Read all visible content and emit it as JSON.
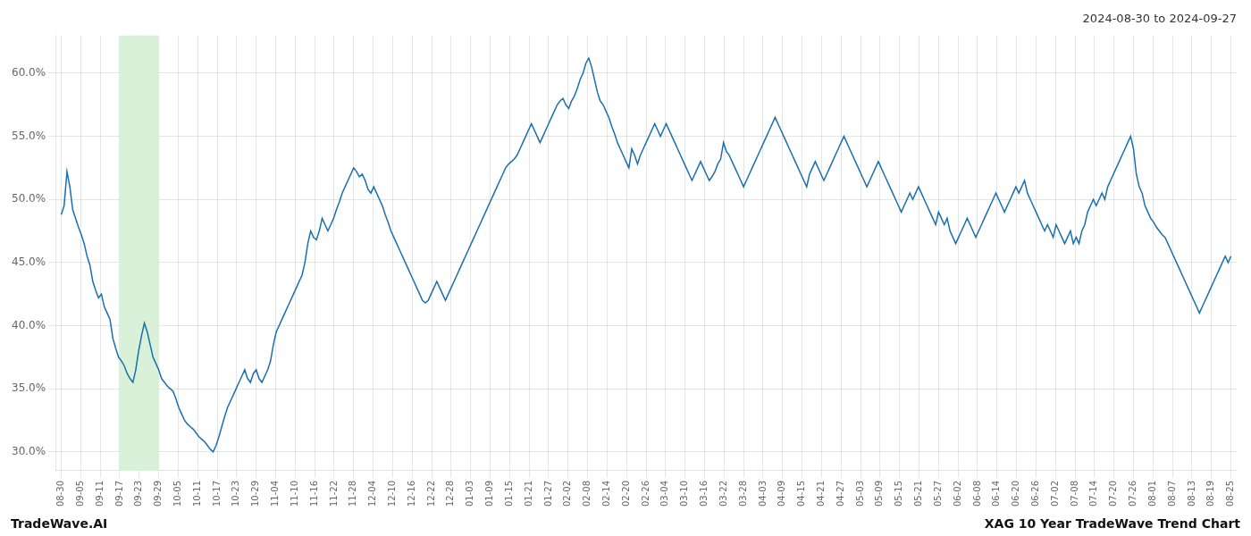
{
  "chart_data": {
    "type": "line",
    "title": "2024-08-30 to 2024-09-27",
    "annotations": [
      "TradeWave.AI",
      "XAG 10 Year TradeWave Trend Chart"
    ],
    "color": "#1a6faf",
    "grid": true,
    "highlight": {
      "start": 20.4,
      "end": 34.0,
      "color": "#d9f0d9"
    },
    "xlim": [
      -2,
      410
    ],
    "ylim": [
      28.5,
      63.0
    ],
    "yticks": [
      {
        "value": 30.0,
        "label": "30.0%"
      },
      {
        "value": 35.0,
        "label": "35.0%"
      },
      {
        "value": 40.0,
        "label": "40.0%"
      },
      {
        "value": 45.0,
        "label": "45.0%"
      },
      {
        "value": 50.0,
        "label": "50.0%"
      },
      {
        "value": 55.0,
        "label": "55.0%"
      },
      {
        "value": 60.0,
        "label": "60.0%"
      }
    ],
    "xticks": [
      {
        "value": 0,
        "label": "08-30"
      },
      {
        "value": 6.8,
        "label": "09-05"
      },
      {
        "value": 13.6,
        "label": "09-11"
      },
      {
        "value": 20.4,
        "label": "09-17"
      },
      {
        "value": 27.2,
        "label": "09-23"
      },
      {
        "value": 34.0,
        "label": "09-29"
      },
      {
        "value": 40.8,
        "label": "10-05"
      },
      {
        "value": 47.6,
        "label": "10-11"
      },
      {
        "value": 54.4,
        "label": "10-17"
      },
      {
        "value": 61.2,
        "label": "10-23"
      },
      {
        "value": 68.0,
        "label": "10-29"
      },
      {
        "value": 74.8,
        "label": "11-04"
      },
      {
        "value": 81.6,
        "label": "11-10"
      },
      {
        "value": 88.4,
        "label": "11-16"
      },
      {
        "value": 95.2,
        "label": "11-22"
      },
      {
        "value": 102.0,
        "label": "11-28"
      },
      {
        "value": 108.8,
        "label": "12-04"
      },
      {
        "value": 115.6,
        "label": "12-10"
      },
      {
        "value": 122.4,
        "label": "12-16"
      },
      {
        "value": 129.2,
        "label": "12-22"
      },
      {
        "value": 136.0,
        "label": "12-28"
      },
      {
        "value": 142.8,
        "label": "01-03"
      },
      {
        "value": 149.6,
        "label": "01-09"
      },
      {
        "value": 156.4,
        "label": "01-15"
      },
      {
        "value": 163.2,
        "label": "01-21"
      },
      {
        "value": 170.0,
        "label": "01-27"
      },
      {
        "value": 176.8,
        "label": "02-02"
      },
      {
        "value": 183.6,
        "label": "02-08"
      },
      {
        "value": 190.4,
        "label": "02-14"
      },
      {
        "value": 197.2,
        "label": "02-20"
      },
      {
        "value": 204.0,
        "label": "02-26"
      },
      {
        "value": 210.8,
        "label": "03-04"
      },
      {
        "value": 217.6,
        "label": "03-10"
      },
      {
        "value": 224.4,
        "label": "03-16"
      },
      {
        "value": 231.2,
        "label": "03-22"
      },
      {
        "value": 238.0,
        "label": "03-28"
      },
      {
        "value": 244.8,
        "label": "04-03"
      },
      {
        "value": 251.6,
        "label": "04-09"
      },
      {
        "value": 258.4,
        "label": "04-15"
      },
      {
        "value": 265.2,
        "label": "04-21"
      },
      {
        "value": 272.0,
        "label": "04-27"
      },
      {
        "value": 278.8,
        "label": "05-03"
      },
      {
        "value": 285.6,
        "label": "05-09"
      },
      {
        "value": 292.4,
        "label": "05-15"
      },
      {
        "value": 299.2,
        "label": "05-21"
      },
      {
        "value": 306.0,
        "label": "05-27"
      },
      {
        "value": 312.8,
        "label": "06-02"
      },
      {
        "value": 319.6,
        "label": "06-08"
      },
      {
        "value": 326.4,
        "label": "06-14"
      },
      {
        "value": 333.2,
        "label": "06-20"
      },
      {
        "value": 340.0,
        "label": "06-26"
      },
      {
        "value": 346.8,
        "label": "07-02"
      },
      {
        "value": 353.6,
        "label": "07-08"
      },
      {
        "value": 360.4,
        "label": "07-14"
      },
      {
        "value": 367.2,
        "label": "07-20"
      },
      {
        "value": 374.0,
        "label": "07-26"
      },
      {
        "value": 380.8,
        "label": "08-01"
      },
      {
        "value": 387.6,
        "label": "08-07"
      },
      {
        "value": 394.4,
        "label": "08-13"
      },
      {
        "value": 401.2,
        "label": "08-19"
      },
      {
        "value": 408.0,
        "label": "08-25"
      }
    ],
    "x": [
      0,
      1,
      2,
      3,
      4,
      5,
      6,
      7,
      8,
      9,
      10,
      11,
      12,
      13,
      14,
      15,
      16,
      17,
      18,
      19,
      20,
      21,
      22,
      23,
      24,
      25,
      26,
      27,
      28,
      29,
      30,
      31,
      32,
      33,
      34,
      35,
      36,
      37,
      38,
      39,
      40,
      41,
      42,
      43,
      44,
      45,
      46,
      47,
      48,
      49,
      50,
      51,
      52,
      53,
      54,
      55,
      56,
      57,
      58,
      59,
      60,
      61,
      62,
      63,
      64,
      65,
      66,
      67,
      68,
      69,
      70,
      71,
      72,
      73,
      74,
      75,
      76,
      77,
      78,
      79,
      80,
      81,
      82,
      83,
      84,
      85,
      86,
      87,
      88,
      89,
      90,
      91,
      92,
      93,
      94,
      95,
      96,
      97,
      98,
      99,
      100,
      101,
      102,
      103,
      104,
      105,
      106,
      107,
      108,
      109,
      110,
      111,
      112,
      113,
      114,
      115,
      116,
      117,
      118,
      119,
      120,
      121,
      122,
      123,
      124,
      125,
      126,
      127,
      128,
      129,
      130,
      131,
      132,
      133,
      134,
      135,
      136,
      137,
      138,
      139,
      140,
      141,
      142,
      143,
      144,
      145,
      146,
      147,
      148,
      149,
      150,
      151,
      152,
      153,
      154,
      155,
      156,
      157,
      158,
      159,
      160,
      161,
      162,
      163,
      164,
      165,
      166,
      167,
      168,
      169,
      170,
      171,
      172,
      173,
      174,
      175,
      176,
      177,
      178,
      179,
      180,
      181,
      182,
      183,
      184,
      185,
      186,
      187,
      188,
      189,
      190,
      191,
      192,
      193,
      194,
      195,
      196,
      197,
      198,
      199,
      200,
      201,
      202,
      203,
      204,
      205,
      206,
      207,
      208,
      209,
      210,
      211,
      212,
      213,
      214,
      215,
      216,
      217,
      218,
      219,
      220,
      221,
      222,
      223,
      224,
      225,
      226,
      227,
      228,
      229,
      230,
      231,
      232,
      233,
      234,
      235,
      236,
      237,
      238,
      239,
      240,
      241,
      242,
      243,
      244,
      245,
      246,
      247,
      248,
      249,
      250,
      251,
      252,
      253,
      254,
      255,
      256,
      257,
      258,
      259,
      260,
      261,
      262,
      263,
      264,
      265,
      266,
      267,
      268,
      269,
      270,
      271,
      272,
      273,
      274,
      275,
      276,
      277,
      278,
      279,
      280,
      281,
      282,
      283,
      284,
      285,
      286,
      287,
      288,
      289,
      290,
      291,
      292,
      293,
      294,
      295,
      296,
      297,
      298,
      299,
      300,
      301,
      302,
      303,
      304,
      305,
      306,
      307,
      308,
      309,
      310,
      311,
      312,
      313,
      314,
      315,
      316,
      317,
      318,
      319,
      320,
      321,
      322,
      323,
      324,
      325,
      326,
      327,
      328,
      329,
      330,
      331,
      332,
      333,
      334,
      335,
      336,
      337,
      338,
      339,
      340,
      341,
      342,
      343,
      344,
      345,
      346,
      347,
      348,
      349,
      350,
      351,
      352,
      353,
      354,
      355,
      356,
      357,
      358,
      359,
      360,
      361,
      362,
      363,
      364,
      365,
      366,
      367,
      368,
      369,
      370,
      371,
      372,
      373,
      374,
      375,
      376,
      377,
      378,
      379,
      380,
      381,
      382,
      383,
      384,
      385,
      386,
      387,
      388,
      389,
      390,
      391,
      392,
      393,
      394,
      395,
      396,
      397,
      398,
      399,
      400,
      401,
      402,
      403,
      404,
      405,
      406,
      407,
      408
    ],
    "values": [
      48.8,
      49.5,
      52.2,
      51.0,
      49.2,
      48.5,
      47.8,
      47.2,
      46.5,
      45.5,
      44.8,
      43.5,
      42.8,
      42.2,
      42.5,
      41.5,
      41.0,
      40.5,
      39.0,
      38.2,
      37.5,
      37.2,
      36.8,
      36.2,
      35.8,
      35.5,
      36.5,
      38.0,
      39.2,
      40.2,
      39.5,
      38.5,
      37.5,
      37.0,
      36.5,
      35.8,
      35.5,
      35.2,
      35.0,
      34.8,
      34.2,
      33.5,
      33.0,
      32.5,
      32.2,
      32.0,
      31.8,
      31.5,
      31.2,
      31.0,
      30.8,
      30.5,
      30.2,
      30.0,
      30.5,
      31.2,
      32.0,
      32.8,
      33.5,
      34.0,
      34.5,
      35.0,
      35.5,
      36.0,
      36.5,
      35.8,
      35.5,
      36.2,
      36.5,
      35.8,
      35.5,
      36.0,
      36.5,
      37.2,
      38.5,
      39.5,
      40.0,
      40.5,
      41.0,
      41.5,
      42.0,
      42.5,
      43.0,
      43.5,
      44.0,
      45.0,
      46.5,
      47.5,
      47.0,
      46.8,
      47.5,
      48.5,
      48.0,
      47.5,
      48.0,
      48.5,
      49.2,
      49.8,
      50.5,
      51.0,
      51.5,
      52.0,
      52.5,
      52.2,
      51.8,
      52.0,
      51.5,
      50.8,
      50.5,
      51.0,
      50.5,
      50.0,
      49.5,
      48.8,
      48.2,
      47.5,
      47.0,
      46.5,
      46.0,
      45.5,
      45.0,
      44.5,
      44.0,
      43.5,
      43.0,
      42.5,
      42.0,
      41.8,
      42.0,
      42.5,
      43.0,
      43.5,
      43.0,
      42.5,
      42.0,
      42.5,
      43.0,
      43.5,
      44.0,
      44.5,
      45.0,
      45.5,
      46.0,
      46.5,
      47.0,
      47.5,
      48.0,
      48.5,
      49.0,
      49.5,
      50.0,
      50.5,
      51.0,
      51.5,
      52.0,
      52.5,
      52.8,
      53.0,
      53.2,
      53.5,
      54.0,
      54.5,
      55.0,
      55.5,
      56.0,
      55.5,
      55.0,
      54.5,
      55.0,
      55.5,
      56.0,
      56.5,
      57.0,
      57.5,
      57.8,
      58.0,
      57.5,
      57.2,
      57.8,
      58.2,
      58.8,
      59.5,
      60.0,
      60.8,
      61.2,
      60.5,
      59.5,
      58.5,
      57.8,
      57.5,
      57.0,
      56.5,
      55.8,
      55.2,
      54.5,
      54.0,
      53.5,
      53.0,
      52.5,
      54.0,
      53.5,
      52.8,
      53.5,
      54.0,
      54.5,
      55.0,
      55.5,
      56.0,
      55.5,
      55.0,
      55.5,
      56.0,
      55.5,
      55.0,
      54.5,
      54.0,
      53.5,
      53.0,
      52.5,
      52.0,
      51.5,
      52.0,
      52.5,
      53.0,
      52.5,
      52.0,
      51.5,
      51.8,
      52.2,
      52.8,
      53.2,
      54.5,
      53.8,
      53.5,
      53.0,
      52.5,
      52.0,
      51.5,
      51.0,
      51.5,
      52.0,
      52.5,
      53.0,
      53.5,
      54.0,
      54.5,
      55.0,
      55.5,
      56.0,
      56.5,
      56.0,
      55.5,
      55.0,
      54.5,
      54.0,
      53.5,
      53.0,
      52.5,
      52.0,
      51.5,
      51.0,
      52.0,
      52.5,
      53.0,
      52.5,
      52.0,
      51.5,
      52.0,
      52.5,
      53.0,
      53.5,
      54.0,
      54.5,
      55.0,
      54.5,
      54.0,
      53.5,
      53.0,
      52.5,
      52.0,
      51.5,
      51.0,
      51.5,
      52.0,
      52.5,
      53.0,
      52.5,
      52.0,
      51.5,
      51.0,
      50.5,
      50.0,
      49.5,
      49.0,
      49.5,
      50.0,
      50.5,
      50.0,
      50.5,
      51.0,
      50.5,
      50.0,
      49.5,
      49.0,
      48.5,
      48.0,
      49.0,
      48.5,
      48.0,
      48.5,
      47.5,
      47.0,
      46.5,
      47.0,
      47.5,
      48.0,
      48.5,
      48.0,
      47.5,
      47.0,
      47.5,
      48.0,
      48.5,
      49.0,
      49.5,
      50.0,
      50.5,
      50.0,
      49.5,
      49.0,
      49.5,
      50.0,
      50.5,
      51.0,
      50.5,
      51.0,
      51.5,
      50.5,
      50.0,
      49.5,
      49.0,
      48.5,
      48.0,
      47.5,
      48.0,
      47.5,
      47.0,
      48.0,
      47.5,
      47.0,
      46.5,
      47.0,
      47.5,
      46.5,
      47.0,
      46.5,
      47.5,
      48.0,
      49.0,
      49.5,
      50.0,
      49.5,
      50.0,
      50.5,
      50.0,
      51.0,
      51.5,
      52.0,
      52.5,
      53.0,
      53.5,
      54.0,
      54.5,
      55.0,
      54.0,
      52.0,
      51.0,
      50.5,
      49.5,
      49.0,
      48.5,
      48.2,
      47.8,
      47.5,
      47.2,
      47.0,
      46.5,
      46.0,
      45.5,
      45.0,
      44.5,
      44.0,
      43.5,
      43.0,
      42.5,
      42.0,
      41.5,
      41.0,
      41.5,
      42.0,
      42.5,
      43.0,
      43.5,
      44.0,
      44.5,
      45.0,
      45.5,
      45.0,
      45.5
    ]
  }
}
